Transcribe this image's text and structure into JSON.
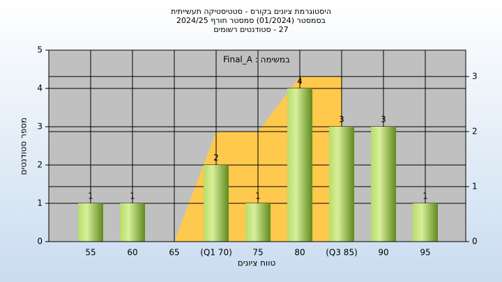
{
  "chart_data": {
    "type": "bar",
    "title": "היסטוגרמת ציונים בקורס - סטטיסטיקה תעשייתית",
    "subtitle": [
      "בסמסטר (01/2024) סמסטר חורף 2024/25",
      "27 - סטודנטים רשומים"
    ],
    "legend_label": "Final_A : במשימה",
    "x_label": "טווח ציונים",
    "y_label": "מספר סטודנטים",
    "categories": [
      "55",
      "60",
      "65",
      "(Q1 70)",
      "75",
      "80",
      "(Q3 85)",
      "90",
      "95"
    ],
    "series": [
      {
        "name": "bars",
        "color": "#8fbf3a",
        "values": [
          1,
          1,
          0,
          2,
          1,
          4,
          3,
          3,
          1
        ],
        "value_labels": [
          "1",
          "1",
          null,
          "2",
          "1",
          "4",
          "3",
          "3",
          "1"
        ]
      },
      {
        "name": "range",
        "color": "#ffc94d",
        "axis": "y2",
        "values": [
          null,
          null,
          0,
          2,
          2,
          3,
          3,
          null,
          null
        ]
      }
    ],
    "ylim": [
      0,
      5
    ],
    "yticks": [
      0,
      1,
      2,
      3,
      4,
      5
    ],
    "y2lim": [
      0,
      3.48
    ],
    "y2ticks": [
      0,
      1,
      2,
      3
    ],
    "grid": true
  }
}
